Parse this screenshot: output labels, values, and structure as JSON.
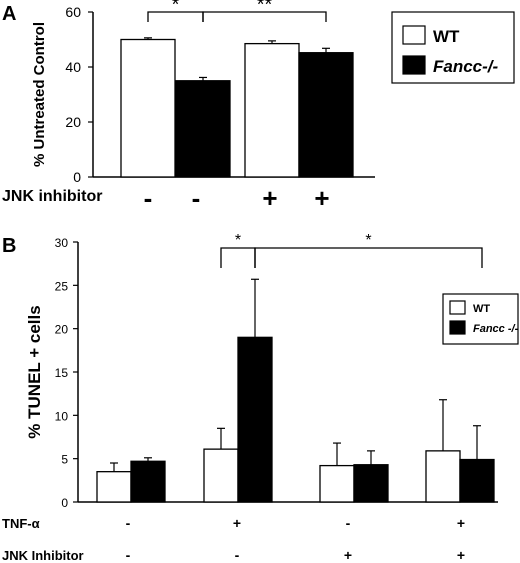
{
  "chart_data": [
    {
      "panel": "A",
      "type": "bar",
      "ylabel": "% Untreated Control",
      "ylim": [
        0,
        60
      ],
      "yticks": [
        "0",
        "20",
        "40",
        "60"
      ],
      "groups": 2,
      "series": [
        {
          "name": "WT",
          "color": "#ffffff",
          "values": [
            50,
            48.5
          ],
          "errors": [
            0.6,
            1.0
          ]
        },
        {
          "name": "Fancc-/-",
          "color": "#000000",
          "values": [
            35,
            45.2
          ],
          "errors": [
            1.2,
            1.6
          ]
        }
      ],
      "conditions": [
        {
          "label": "JNK inhibitor",
          "values": [
            "-",
            "-",
            "+",
            "+"
          ]
        }
      ],
      "significance": [
        {
          "label": "*",
          "from_bar": 0,
          "to_bar": 1
        },
        {
          "label": "**",
          "from_bar": 1,
          "to_bar": 3
        }
      ],
      "legend": {
        "position": "top-right"
      }
    },
    {
      "panel": "B",
      "type": "bar",
      "ylabel": "% TUNEL + cells",
      "ylim": [
        0,
        30
      ],
      "yticks": [
        "0",
        "5",
        "10",
        "15",
        "20",
        "25",
        "30"
      ],
      "groups": 4,
      "series": [
        {
          "name": "WT",
          "color": "#ffffff",
          "values": [
            3.5,
            6.1,
            4.2,
            5.9
          ],
          "errors": [
            1.0,
            2.4,
            2.6,
            5.9
          ]
        },
        {
          "name": "Fancc -/-",
          "color": "#000000",
          "values": [
            4.7,
            19.0,
            4.3,
            4.9
          ],
          "errors": [
            0.4,
            6.7,
            1.6,
            3.9
          ]
        }
      ],
      "conditions": [
        {
          "label": "TNF-α",
          "values": [
            "-",
            "+",
            "-",
            "+"
          ]
        },
        {
          "label": "JNK Inhibitor",
          "values": [
            "-",
            "-",
            "+",
            "+"
          ]
        }
      ],
      "significance": [
        {
          "label": "*",
          "from_bar": 2,
          "to_bar": 3
        },
        {
          "label": "*",
          "from_bar": 3,
          "to_bar": 7
        }
      ],
      "legend": {
        "position": "top-right"
      }
    }
  ]
}
